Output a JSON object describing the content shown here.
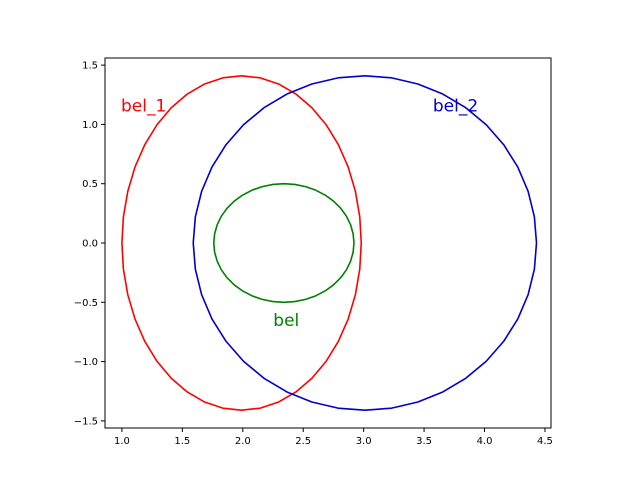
{
  "chart_data": {
    "type": "line",
    "title": "",
    "xlabel": "",
    "ylabel": "",
    "xlim": [
      0.86,
      4.55
    ],
    "ylim": [
      -1.56,
      1.56
    ],
    "grid": false,
    "legend": "none",
    "x_ticks": [
      1.0,
      1.5,
      2.0,
      2.5,
      3.0,
      3.5,
      4.0,
      4.5
    ],
    "y_ticks": [
      -1.5,
      -1.0,
      -0.5,
      0.0,
      0.5,
      1.0,
      1.5
    ],
    "x_tick_labels": [
      "1.0",
      "1.5",
      "2.0",
      "2.5",
      "3.0",
      "3.5",
      "4.0",
      "4.5"
    ],
    "y_tick_labels": [
      "−1.5",
      "−1.0",
      "−0.5",
      "0.0",
      "0.5",
      "1.0",
      "1.5"
    ],
    "series": [
      {
        "name": "bel_1",
        "color": "#ff0000",
        "shape": "ellipse",
        "center": [
          1.99,
          0.0
        ],
        "radii": [
          0.99,
          1.41
        ],
        "points": 41,
        "annotation": {
          "text": "bel_1",
          "x": 1.18,
          "y": 1.16
        }
      },
      {
        "name": "bel_2",
        "color": "#0000cc",
        "shape": "ellipse",
        "center": [
          3.01,
          0.0
        ],
        "radii": [
          1.42,
          1.41
        ],
        "points": 41,
        "annotation": {
          "text": "bel_2",
          "x": 3.76,
          "y": 1.16
        }
      },
      {
        "name": "bel",
        "color": "#008000",
        "shape": "ellipse",
        "center": [
          2.34,
          0.0
        ],
        "radii": [
          0.58,
          0.5
        ],
        "points": 41,
        "annotation": {
          "text": "bel",
          "x": 2.36,
          "y": -0.65
        }
      }
    ]
  }
}
